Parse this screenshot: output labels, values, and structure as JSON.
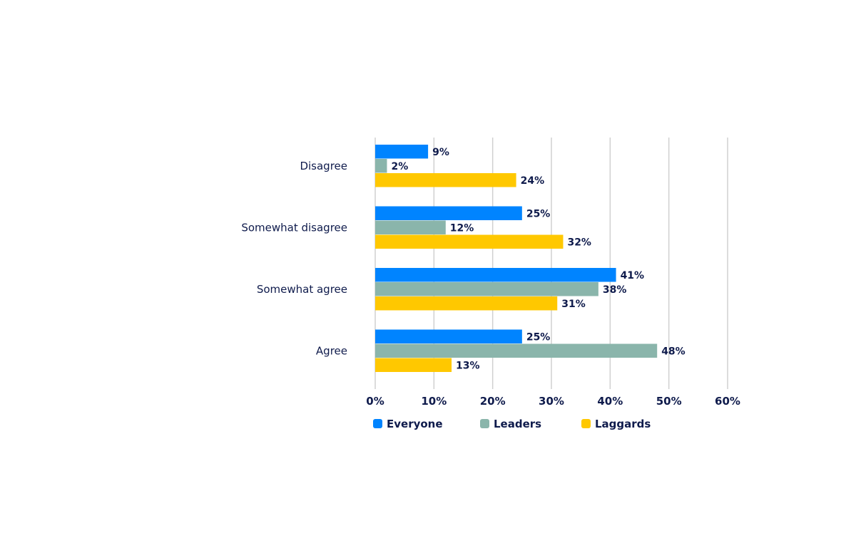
{
  "chart_data": {
    "type": "bar",
    "orientation": "horizontal",
    "categories": [
      "Disagree",
      "Somewhat disagree",
      "Somewhat agree",
      "Agree"
    ],
    "series": [
      {
        "name": "Everyone",
        "color": "#0084ff",
        "values": [
          9,
          25,
          41,
          25
        ],
        "labels": [
          "9%",
          "25%",
          "41%",
          "25%"
        ]
      },
      {
        "name": "Leaders",
        "color": "#8ab5ab",
        "values": [
          2,
          12,
          38,
          48
        ],
        "labels": [
          "2%",
          "12%",
          "38%",
          "48%"
        ]
      },
      {
        "name": "Laggards",
        "color": "#ffc800",
        "values": [
          24,
          32,
          31,
          13
        ],
        "labels": [
          "24%",
          "32%",
          "31%",
          "13%"
        ]
      }
    ],
    "xlim": [
      0,
      60
    ],
    "xticks": [
      "0%",
      "10%",
      "20%",
      "30%",
      "40%",
      "50%",
      "60%"
    ],
    "grid": true,
    "legend": "bottom",
    "text_color": "#0f1b4c"
  }
}
